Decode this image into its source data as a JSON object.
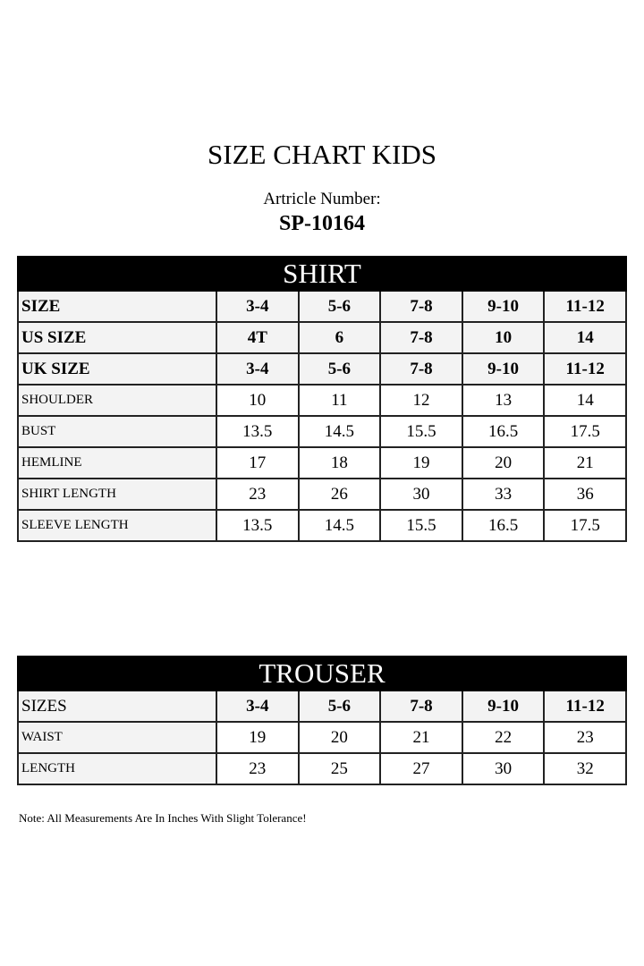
{
  "title": "SIZE CHART KIDS",
  "article_label": "Artricle Number:",
  "article_number": "SP-10164",
  "shirt": {
    "heading": "SHIRT",
    "header_rows": [
      {
        "label": "SIZE",
        "values": [
          "3-4",
          "5-6",
          "7-8",
          "9-10",
          "11-12"
        ]
      },
      {
        "label": "US SIZE",
        "values": [
          "4T",
          "6",
          "7-8",
          "10",
          "14"
        ]
      },
      {
        "label": "UK SIZE",
        "values": [
          "3-4",
          "5-6",
          "7-8",
          "9-10",
          "11-12"
        ]
      }
    ],
    "rows": [
      {
        "label": "SHOULDER",
        "values": [
          "10",
          "11",
          "12",
          "13",
          "14"
        ]
      },
      {
        "label": "BUST",
        "values": [
          "13.5",
          "14.5",
          "15.5",
          "16.5",
          "17.5"
        ]
      },
      {
        "label": "HEMLINE",
        "values": [
          "17",
          "18",
          "19",
          "20",
          "21"
        ]
      },
      {
        "label": "SHIRT LENGTH",
        "values": [
          "23",
          "26",
          "30",
          "33",
          "36"
        ]
      },
      {
        "label": "SLEEVE LENGTH",
        "values": [
          "13.5",
          "14.5",
          "15.5",
          "16.5",
          "17.5"
        ]
      }
    ]
  },
  "trouser": {
    "heading": "TROUSER",
    "header_row": {
      "label": "SIZES",
      "values": [
        "3-4",
        "5-6",
        "7-8",
        "9-10",
        "11-12"
      ]
    },
    "rows": [
      {
        "label": "WAIST",
        "values": [
          "19",
          "20",
          "21",
          "22",
          "23"
        ]
      },
      {
        "label": "LENGTH",
        "values": [
          "23",
          "25",
          "27",
          "30",
          "32"
        ]
      }
    ]
  },
  "note": "Note: All Measurements Are In Inches With Slight Tolerance!"
}
